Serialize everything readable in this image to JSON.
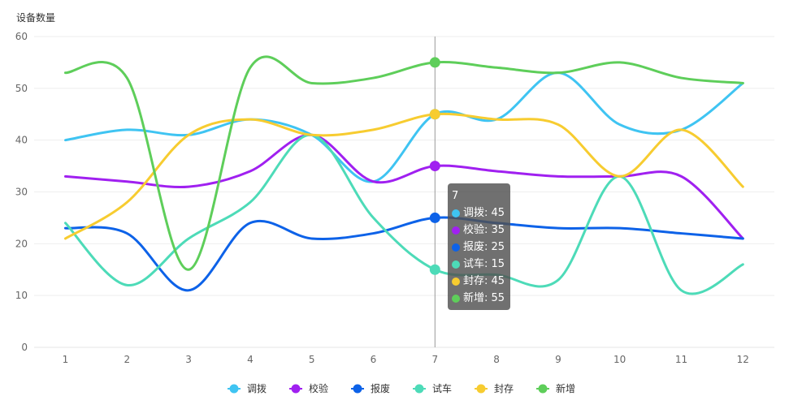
{
  "chart_data": {
    "type": "line",
    "smooth": true,
    "ylabel": "设备数量",
    "xlabel": "",
    "categories": [
      "1",
      "2",
      "3",
      "4",
      "5",
      "6",
      "7",
      "8",
      "9",
      "10",
      "11",
      "12"
    ],
    "ylim": [
      0,
      60
    ],
    "yticks": [
      0,
      10,
      20,
      30,
      40,
      50,
      60
    ],
    "grid": true,
    "legend_position": "bottom-center",
    "series": [
      {
        "name": "调拨",
        "color": "#3fc4f2",
        "values": [
          40,
          42,
          41,
          44,
          41,
          32,
          45,
          44,
          53,
          43,
          42,
          51
        ]
      },
      {
        "name": "校验",
        "color": "#a020f0",
        "values": [
          33,
          32,
          31,
          34,
          41,
          32,
          35,
          34,
          33,
          33,
          33,
          21
        ]
      },
      {
        "name": "报废",
        "color": "#0d62e8",
        "values": [
          23,
          22,
          11,
          24,
          21,
          22,
          25,
          24,
          23,
          23,
          22,
          21
        ]
      },
      {
        "name": "试车",
        "color": "#4ddbb8",
        "values": [
          24,
          12,
          21,
          28,
          41,
          25,
          15,
          14,
          13,
          33,
          11,
          16
        ]
      },
      {
        "name": "封存",
        "color": "#f7cc30",
        "values": [
          21,
          28,
          41,
          44,
          41,
          42,
          45,
          44,
          43,
          33,
          42,
          31
        ]
      },
      {
        "name": "新增",
        "color": "#5ece5a",
        "values": [
          53,
          52,
          15,
          54,
          51,
          52,
          55,
          54,
          53,
          55,
          52,
          51
        ]
      }
    ],
    "tooltip": {
      "category": "7",
      "title": "7",
      "rows": [
        "调拨: 45",
        "校验: 35",
        "报废: 25",
        "试车: 15",
        "封存: 45",
        "新增: 55"
      ]
    }
  }
}
